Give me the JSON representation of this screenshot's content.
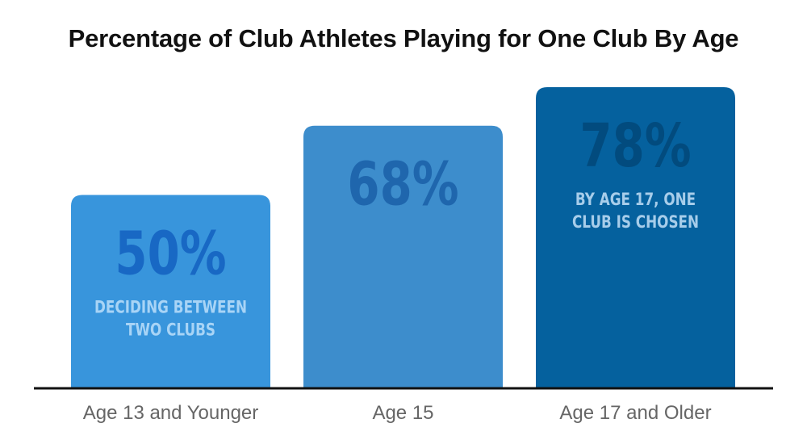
{
  "chart_data": {
    "type": "bar",
    "title": "Percentage of Club Athletes Playing for One Club By Age",
    "categories": [
      "Age 13 and Younger",
      "Age 15",
      "Age 17 and Older"
    ],
    "values": [
      50,
      68,
      78
    ],
    "value_labels": [
      "50%",
      "68%",
      "78%"
    ],
    "annotations": [
      [
        "DECIDING BETWEEN",
        "TWO CLUBS"
      ],
      [],
      [
        "BY AGE 17, ONE",
        "CLUB IS CHOSEN"
      ]
    ],
    "colors": [
      "#3895DC",
      "#3D8DCC",
      "#05619E"
    ],
    "value_label_colors": [
      "#1868C4",
      "#1F66AD",
      "#024B7E"
    ],
    "annotation_colors": [
      "#A8D4F6",
      "",
      "#A7CDEA"
    ],
    "grid": false,
    "legend": "none"
  }
}
